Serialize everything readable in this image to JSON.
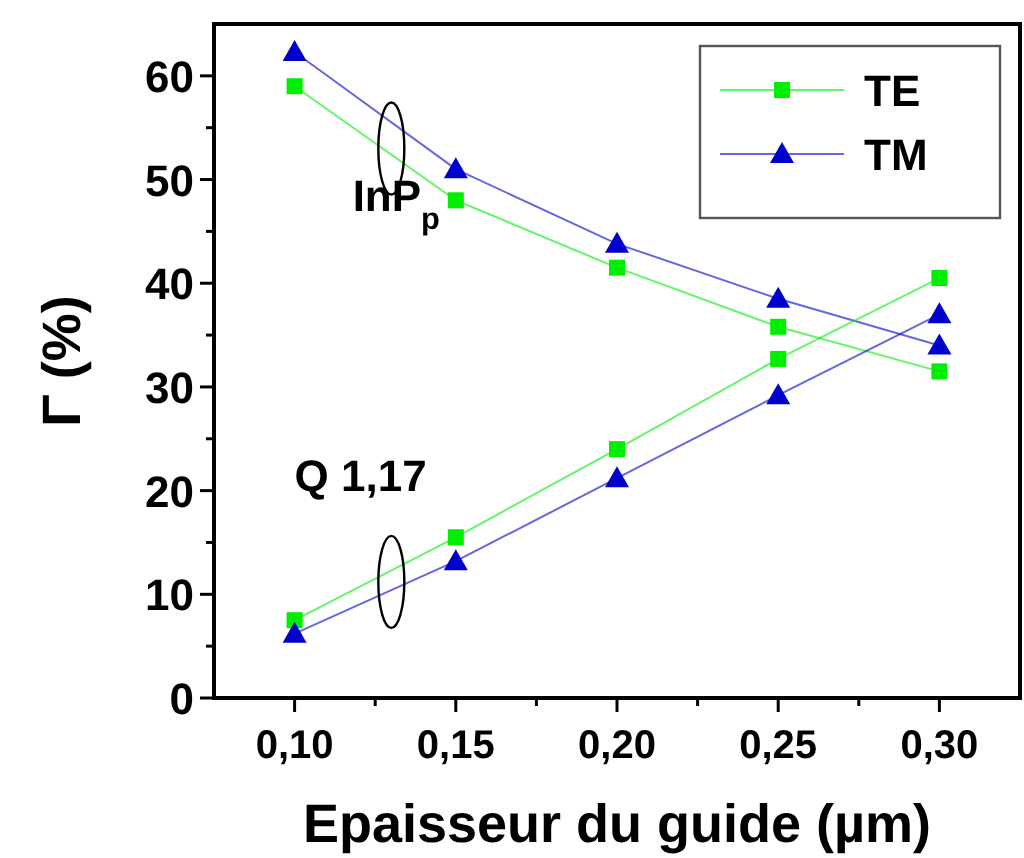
{
  "chart_data": {
    "type": "line",
    "xlabel": "Epaisseur du guide (µm)",
    "ylabel": "Γ (%)",
    "x": [
      0.1,
      0.15,
      0.2,
      0.25,
      0.3
    ],
    "series": [
      {
        "name": "TE",
        "color": "#00ee00",
        "marker": "square",
        "values": [
          59,
          48,
          41.5,
          35.8,
          31.5
        ]
      },
      {
        "name": "TM",
        "color": "#0000cc",
        "marker": "triangle",
        "values": [
          62.3,
          51,
          43.8,
          38.5,
          34
        ]
      },
      {
        "color": "#00ee00",
        "marker": "square",
        "values": [
          7.5,
          15.5,
          24,
          32.7,
          40.5
        ]
      },
      {
        "color": "#0000cc",
        "marker": "triangle",
        "values": [
          6.2,
          13.2,
          21.2,
          29.2,
          37
        ]
      }
    ],
    "annotations": [
      "InP$_{p}$",
      "Q 1,17"
    ],
    "xlim": [
      0.075,
      0.325
    ],
    "xticks": [
      {
        "value": 0.1,
        "label": "0,10"
      },
      {
        "value": 0.125,
        "label": null
      },
      {
        "value": 0.15,
        "label": "0,15"
      },
      {
        "value": 0.175,
        "label": null
      },
      {
        "value": 0.2,
        "label": "0,20"
      },
      {
        "value": 0.225,
        "label": null
      },
      {
        "value": 0.25,
        "label": "0,25"
      },
      {
        "value": 0.275,
        "label": null
      },
      {
        "value": 0.3,
        "label": "0,30"
      }
    ],
    "ylim": [
      0,
      65
    ],
    "yticks": [
      0,
      {
        "value": 5,
        "label": null
      },
      10,
      {
        "value": 15,
        "label": null
      },
      20,
      {
        "value": 25,
        "label": null
      },
      30,
      {
        "value": 35,
        "label": null
      },
      40,
      {
        "value": 45,
        "label": null
      },
      50,
      {
        "value": 55,
        "label": null
      },
      60
    ],
    "grid": false,
    "legend": "top right"
  }
}
